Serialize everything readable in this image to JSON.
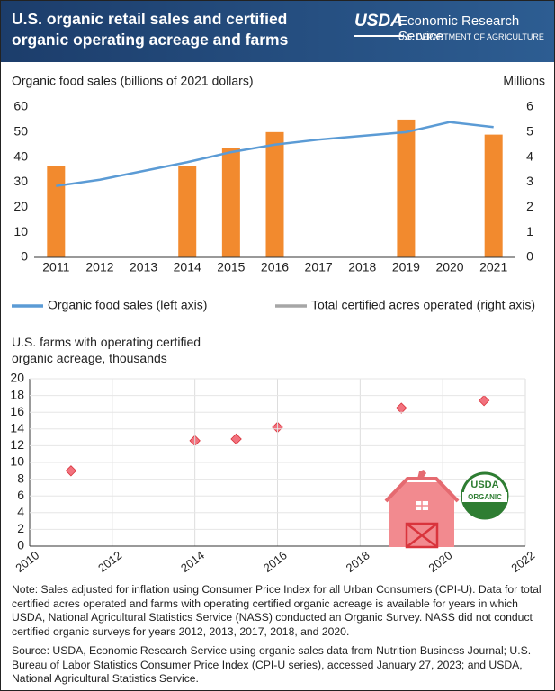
{
  "header": {
    "title": "U.S. organic retail sales and certified organic operating acreage and farms",
    "logo": "USDA",
    "agency": "Economic Research Service",
    "department": "U.S. DEPARTMENT OF AGRICULTURE"
  },
  "chart_data": [
    {
      "type": "combo",
      "title": "Organic food sales (billions of 2021 dollars)",
      "y2_title": "Millions",
      "categories": [
        "2011",
        "2012",
        "2013",
        "2014",
        "2015",
        "2016",
        "2017",
        "2018",
        "2019",
        "2020",
        "2021"
      ],
      "series": [
        {
          "name": "Organic food sales (left axis)",
          "type": "line",
          "color": "#5b9bd5",
          "axis": "y",
          "values": [
            28.5,
            31,
            34.5,
            38,
            42,
            45,
            47,
            48.5,
            50,
            54,
            52
          ]
        },
        {
          "name": "Total certified acres operated (right axis)",
          "type": "bar",
          "color": "#f28a2e",
          "legend_color": "#a6a6a6",
          "axis": "y2",
          "values": [
            3.65,
            null,
            null,
            3.65,
            4.35,
            5.0,
            null,
            null,
            5.5,
            null,
            4.9
          ]
        }
      ],
      "ylim": [
        0,
        60
      ],
      "yticks": [
        0,
        10,
        20,
        30,
        40,
        50,
        60
      ],
      "y2lim": [
        0,
        6
      ],
      "y2ticks": [
        0,
        1,
        2,
        3,
        4,
        5,
        6
      ]
    },
    {
      "type": "scatter",
      "title": "U.S. farms with operating certified organic acreage, thousands",
      "color": "#f2727e",
      "x": [
        2011,
        2014,
        2015,
        2016,
        2019,
        2021
      ],
      "values": [
        9.0,
        12.6,
        12.8,
        14.2,
        16.5,
        17.4
      ],
      "xlim": [
        2010,
        2022
      ],
      "xticks": [
        2010,
        2012,
        2014,
        2016,
        2018,
        2020,
        2022
      ],
      "ylim": [
        0,
        20
      ],
      "yticks": [
        0,
        2,
        4,
        6,
        8,
        10,
        12,
        14,
        16,
        18,
        20
      ],
      "grid": true
    }
  ],
  "seal": {
    "top": "USDA",
    "bottom": "ORGANIC"
  },
  "note": "Note: Sales adjusted for inflation using Consumer Price Index for all Urban Consumers (CPI-U). Data for total certified acres operated and farms with operating certified organic acreage is available for years in which USDA, National Agricultural Statistics Service (NASS) conducted an Organic Survey. NASS did not conduct certified organic surveys for years 2012, 2013, 2017, 2018, and 2020.",
  "source": "Source: USDA, Economic Research Service using organic sales data from Nutrition Business Journal; U.S. Bureau of Labor Statistics Consumer Price Index (CPI-U series), accessed January 27, 2023; and USDA, National Agricultural Statistics Service."
}
